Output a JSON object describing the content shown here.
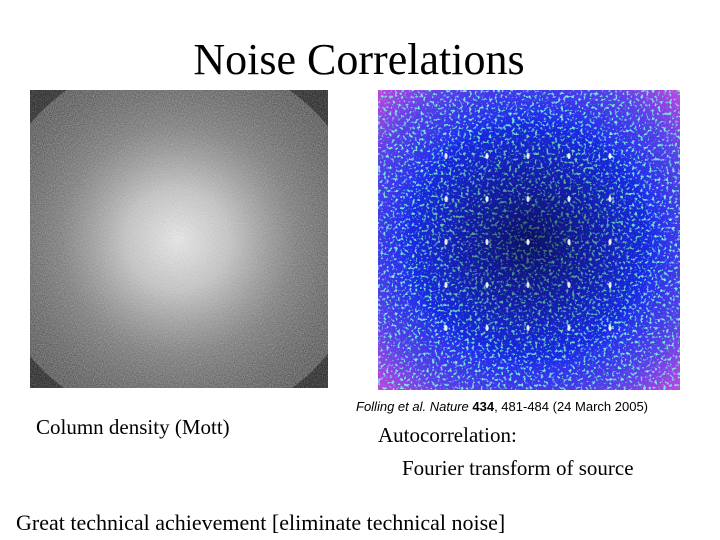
{
  "slide": {
    "title": "Noise Correlations",
    "left_caption": "Column density (Mott)",
    "citation": {
      "authors": "Folling et al.",
      "journal": "Nature",
      "volume": "434",
      "rest": ", 481-484 (24 March 2005)"
    },
    "right_caption_line1": "Autocorrelation:",
    "right_caption_line2": "Fourier transform of source",
    "footer": "Great technical achievement [eliminate technical noise]"
  },
  "figures": {
    "left": {
      "description_icon": "grayscale-column-density-image",
      "colors": {
        "background": "#151515",
        "center": "#f2f2f2"
      }
    },
    "right": {
      "description_icon": "false-color-autocorrelation-image",
      "colors": {
        "background": "#1e1ee0",
        "edge": "#d040e0",
        "speckle": "#40d0a0",
        "peak": "#ffffff"
      }
    }
  }
}
